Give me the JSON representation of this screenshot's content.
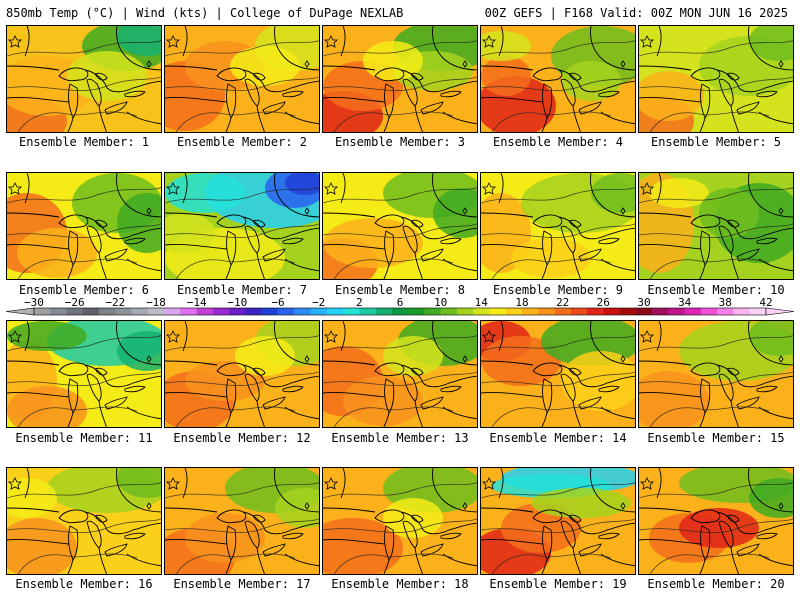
{
  "header": {
    "left": "850mb Temp (°C) | Wind (kts) | College of DuPage NEXLAB",
    "right": "00Z GEFS | F168 Valid: 00Z MON JUN 16 2025"
  },
  "colorbar": {
    "tick_labels": [
      "−30",
      "−26",
      "−22",
      "−18",
      "−14",
      "−10",
      "−6",
      "−2",
      "2",
      "6",
      "10",
      "14",
      "18",
      "22",
      "26",
      "30",
      "34",
      "38",
      "42"
    ],
    "colors": [
      "#9aa0a6",
      "#858b92",
      "#6f757c",
      "#5e636a",
      "#7b8288",
      "#8c9399",
      "#a3a9b0",
      "#b9bfc5",
      "#d9a6ee",
      "#e070f0",
      "#c43fd6",
      "#9a2bd0",
      "#6a1fc8",
      "#3a25c4",
      "#2041d8",
      "#2a63ee",
      "#2e8cf7",
      "#28b2f9",
      "#25d0f4",
      "#22e2d8",
      "#1ecaa6",
      "#16b172",
      "#0f9844",
      "#1b9b2a",
      "#3faa22",
      "#6fbd1f",
      "#a4d21f",
      "#d4e31d",
      "#f5ec17",
      "#fbd01a",
      "#fbb21a",
      "#f8921d",
      "#f36e1c",
      "#ec4b1c",
      "#e02519",
      "#c81212",
      "#a40c0c",
      "#8a0a1c",
      "#a00f5c",
      "#c0168c",
      "#de24b4",
      "#ef52d6",
      "#f482e6",
      "#f8b4f0",
      "#fad2f6"
    ],
    "low_arrow_color": "#b0b0b0",
    "high_arrow_color": "#fad2f6"
  },
  "panels": [
    {
      "label": "Ensemble Member: 1"
    },
    {
      "label": "Ensemble Member: 2"
    },
    {
      "label": "Ensemble Member: 3"
    },
    {
      "label": "Ensemble Member: 4"
    },
    {
      "label": "Ensemble Member: 5"
    },
    {
      "label": "Ensemble Member: 6"
    },
    {
      "label": "Ensemble Member: 7"
    },
    {
      "label": "Ensemble Member: 8"
    },
    {
      "label": "Ensemble Member: 9"
    },
    {
      "label": "Ensemble Member: 10"
    },
    {
      "label": "Ensemble Member: 11"
    },
    {
      "label": "Ensemble Member: 12"
    },
    {
      "label": "Ensemble Member: 13"
    },
    {
      "label": "Ensemble Member: 14"
    },
    {
      "label": "Ensemble Member: 15"
    },
    {
      "label": "Ensemble Member: 16"
    },
    {
      "label": "Ensemble Member: 17"
    },
    {
      "label": "Ensemble Member: 18"
    },
    {
      "label": "Ensemble Member: 19"
    },
    {
      "label": "Ensemble Member: 20"
    }
  ]
}
